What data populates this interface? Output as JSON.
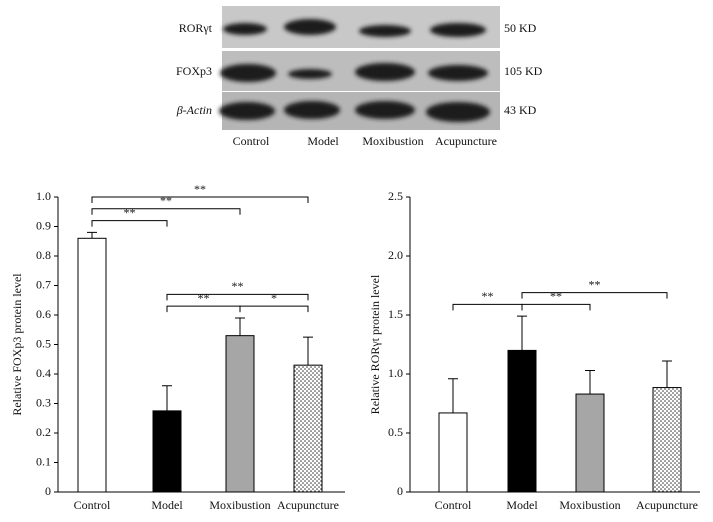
{
  "blot": {
    "proteins": [
      "RORγt",
      "FOXp3",
      "β-Actin"
    ],
    "sizes": [
      "50 KD",
      "105 KD",
      "43 KD"
    ],
    "lanes": [
      "Control",
      "Model",
      "Moxibustion",
      "Acupuncture"
    ]
  },
  "chart_data": [
    {
      "type": "bar",
      "y_label": "Relative FOXp3 protein level",
      "categories": [
        "Control",
        "Model",
        "Moxibustion",
        "Acupuncture"
      ],
      "values": [
        0.86,
        0.275,
        0.53,
        0.43
      ],
      "errors": [
        0.02,
        0.085,
        0.06,
        0.095
      ],
      "fills": [
        "#ffffff",
        "#000000",
        "#a6a6a6",
        "dotted"
      ],
      "ylim": [
        0,
        1
      ],
      "yticks": [
        0,
        0.1,
        0.2,
        0.3,
        0.4,
        0.5,
        0.6,
        0.7,
        0.8,
        0.9,
        {
          "value": 1,
          "label": "1.0"
        }
      ],
      "significance": [
        {
          "from": 0,
          "to": 1,
          "text": "**"
        },
        {
          "from": 2,
          "to": 3,
          "text": "*"
        },
        {
          "from": 1,
          "to": 2,
          "text": "**"
        },
        {
          "from": 1,
          "to": 3,
          "text": "**"
        },
        {
          "from": 0,
          "to": 2,
          "text": "**"
        },
        {
          "from": 0,
          "to": 3,
          "text": "**"
        }
      ]
    },
    {
      "type": "bar",
      "y_label": "Relative RORγt protein level",
      "categories": [
        "Control",
        "Model",
        "Moxibustion",
        "Acupuncture"
      ],
      "values": [
        0.67,
        1.2,
        0.83,
        0.885
      ],
      "errors": [
        0.29,
        0.29,
        0.2,
        0.225
      ],
      "fills": [
        "#ffffff",
        "#000000",
        "#a6a6a6",
        "dotted"
      ],
      "ylim": [
        0,
        2.5
      ],
      "yticks": [
        0,
        0.5,
        {
          "value": 1,
          "label": "1.0"
        },
        1.5,
        {
          "value": 2,
          "label": "2.0"
        },
        2.5
      ],
      "significance": [
        {
          "from": 0,
          "to": 1,
          "text": "**"
        },
        {
          "from": 1,
          "to": 2,
          "text": "**"
        },
        {
          "from": 1,
          "to": 3,
          "text": "**"
        }
      ]
    }
  ]
}
